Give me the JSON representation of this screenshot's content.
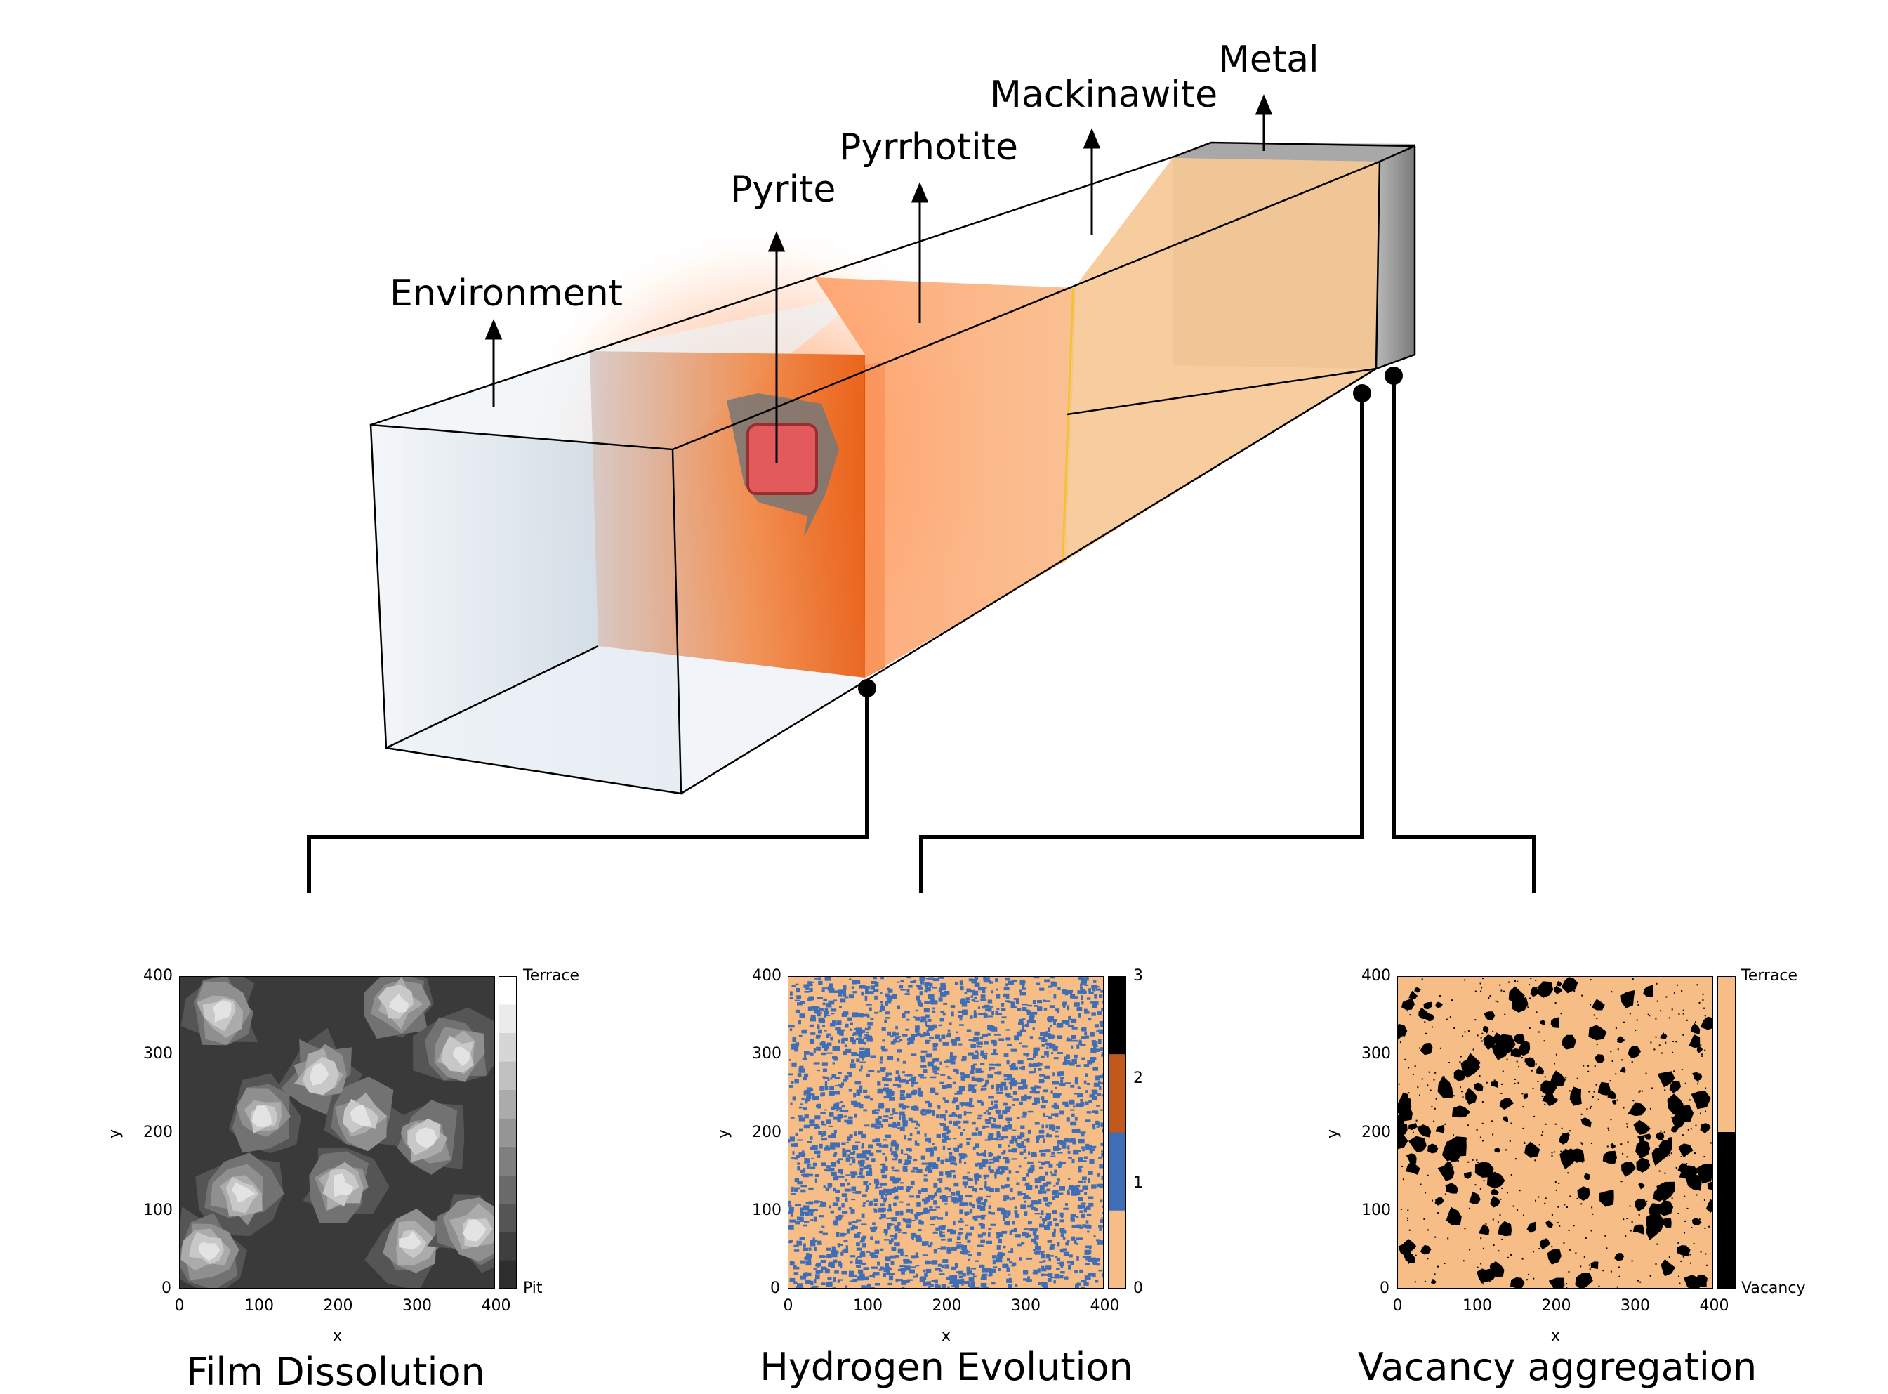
{
  "layers": {
    "environment": "Environment",
    "pyrite": "Pyrite",
    "pyrrhotite": "Pyrrhotite",
    "mackinawite": "Mackinawite",
    "metal": "Metal"
  },
  "panels": [
    {
      "title": "Film Dissolution",
      "xlabel": "x",
      "ylabel": "y",
      "ticks": [
        "0",
        "100",
        "200",
        "300",
        "400"
      ],
      "colorbar": {
        "type": "gray",
        "top_label": "Terrace",
        "bottom_label": "Pit"
      },
      "colors": {
        "background": "#3a3a3a",
        "high": "#f2f2f2"
      }
    },
    {
      "title": "Hydrogen Evolution",
      "xlabel": "x",
      "ylabel": "y",
      "ticks": [
        "0",
        "100",
        "200",
        "300",
        "400"
      ],
      "colorbar": {
        "type": "discrete",
        "tick_labels": [
          "0",
          "1",
          "2",
          "3"
        ],
        "colors": [
          "#f6bd86",
          "#3f6eb6",
          "#c0591c",
          "#000000"
        ]
      },
      "colors": {
        "background": "#f6bd86",
        "dots": "#3f6eb6"
      }
    },
    {
      "title": "Vacancy aggregation",
      "xlabel": "x",
      "ylabel": "y",
      "ticks": [
        "0",
        "100",
        "200",
        "300",
        "400"
      ],
      "colorbar": {
        "type": "binary",
        "top_label": "Terrace",
        "bottom_label": "Vacancy"
      },
      "colors": {
        "background": "#f6bd86",
        "blobs": "#000000"
      }
    }
  ],
  "chart_data": [
    {
      "type": "heatmap",
      "title": "Film Dissolution",
      "xlabel": "x",
      "ylabel": "y",
      "xlim": [
        0,
        400
      ],
      "ylim": [
        0,
        400
      ],
      "colorbar_labels": [
        "Pit",
        "Terrace"
      ]
    },
    {
      "type": "heatmap",
      "title": "Hydrogen Evolution",
      "xlabel": "x",
      "ylabel": "y",
      "xlim": [
        0,
        400
      ],
      "ylim": [
        0,
        400
      ],
      "colorbar_ticks": [
        0,
        1,
        2,
        3
      ]
    },
    {
      "type": "heatmap",
      "title": "Vacancy aggregation",
      "xlabel": "x",
      "ylabel": "y",
      "xlim": [
        0,
        400
      ],
      "ylim": [
        0,
        400
      ],
      "colorbar_labels": [
        "Vacancy",
        "Terrace"
      ]
    }
  ]
}
